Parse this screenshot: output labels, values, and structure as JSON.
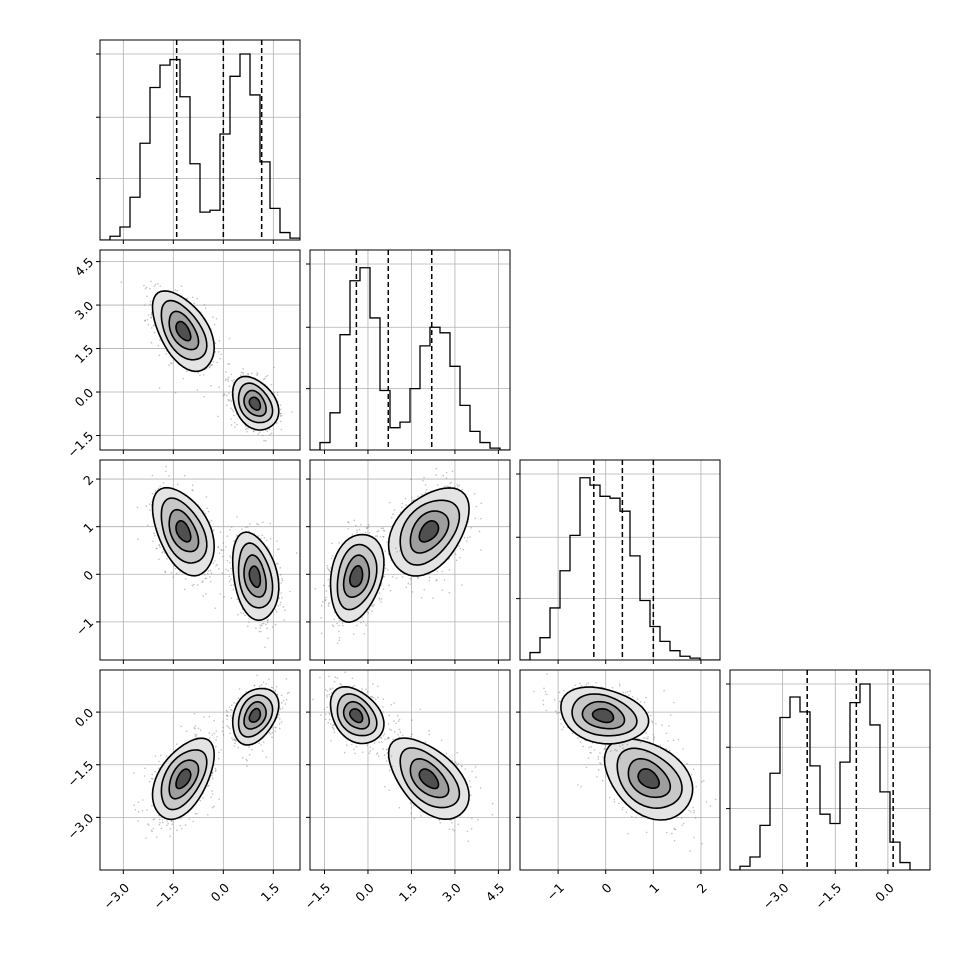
{
  "chart_data": {
    "type": "corner",
    "dimensions": 4,
    "grid": true,
    "quantiles_shown": [
      0.16,
      0.5,
      0.84
    ],
    "colors": {
      "axes": "#000000",
      "grid": "#b0b0b0",
      "hist": "#000000",
      "contour": "#000000",
      "scatter": "#777777"
    },
    "parameters": [
      {
        "range": [
          -3.7,
          2.3
        ],
        "ticks": [
          "-3.0",
          "-1.5",
          "0.0",
          "1.5"
        ],
        "tick_values": [
          -3.0,
          -1.5,
          0.0,
          1.5
        ],
        "quantiles": [
          -1.4,
          0.0,
          1.15
        ],
        "histogram": [
          0,
          0.02,
          0.07,
          0.23,
          0.52,
          0.82,
          0.94,
          0.97,
          0.77,
          0.41,
          0.15,
          0.16,
          0.57,
          0.88,
          1.0,
          0.78,
          0.42,
          0.17,
          0.04,
          0.01
        ]
      },
      {
        "range": [
          -2.0,
          4.9
        ],
        "ticks": [
          "-1.5",
          "0.0",
          "1.5",
          "3.0",
          "4.5"
        ],
        "tick_values": [
          -1.5,
          0.0,
          1.5,
          3.0,
          4.5
        ],
        "quantiles": [
          -0.4,
          0.7,
          2.2
        ],
        "histogram": [
          0,
          0.04,
          0.2,
          0.62,
          0.91,
          0.98,
          0.71,
          0.32,
          0.12,
          0.15,
          0.33,
          0.56,
          0.66,
          0.63,
          0.45,
          0.24,
          0.1,
          0.04,
          0.01,
          0
        ]
      },
      {
        "range": [
          -1.8,
          2.4
        ],
        "ticks": [
          "-1",
          "0",
          "1",
          "2"
        ],
        "tick_values": [
          -1,
          0,
          1,
          2
        ],
        "quantiles": [
          -0.25,
          0.35,
          1.0
        ],
        "histogram": [
          0,
          0.04,
          0.12,
          0.28,
          0.48,
          0.67,
          0.98,
          0.94,
          0.88,
          0.87,
          0.8,
          0.56,
          0.32,
          0.18,
          0.1,
          0.05,
          0.02,
          0.01,
          0,
          0
        ]
      },
      {
        "range": [
          -4.5,
          1.2
        ],
        "ticks": [
          "-3.0",
          "-1.5",
          "0.0"
        ],
        "tick_values": [
          -3.0,
          -1.5,
          0.0
        ],
        "quantiles": [
          -2.3,
          -0.9,
          0.15
        ],
        "histogram": [
          0,
          0.02,
          0.07,
          0.24,
          0.52,
          0.82,
          0.93,
          0.85,
          0.56,
          0.3,
          0.25,
          0.58,
          0.9,
          1.0,
          0.78,
          0.42,
          0.15,
          0.04,
          0,
          0
        ]
      }
    ],
    "correlations": [
      [
        1,
        -0.92,
        -0.8,
        0.9
      ],
      [
        -0.92,
        1,
        0.74,
        -0.95
      ],
      [
        -0.8,
        0.74,
        1,
        -0.65
      ],
      [
        0.9,
        -0.95,
        -0.65,
        1
      ]
    ],
    "modes": [
      {
        "mean": [
          -1.2,
          2.1,
          0.9,
          -1.9
        ],
        "sd": [
          0.4,
          0.6,
          0.4,
          0.5
        ],
        "weight": 0.5
      },
      {
        "mean": [
          0.95,
          -0.4,
          -0.05,
          -0.1
        ],
        "sd": [
          0.3,
          0.4,
          0.4,
          0.35
        ],
        "weight": 0.5
      }
    ]
  }
}
